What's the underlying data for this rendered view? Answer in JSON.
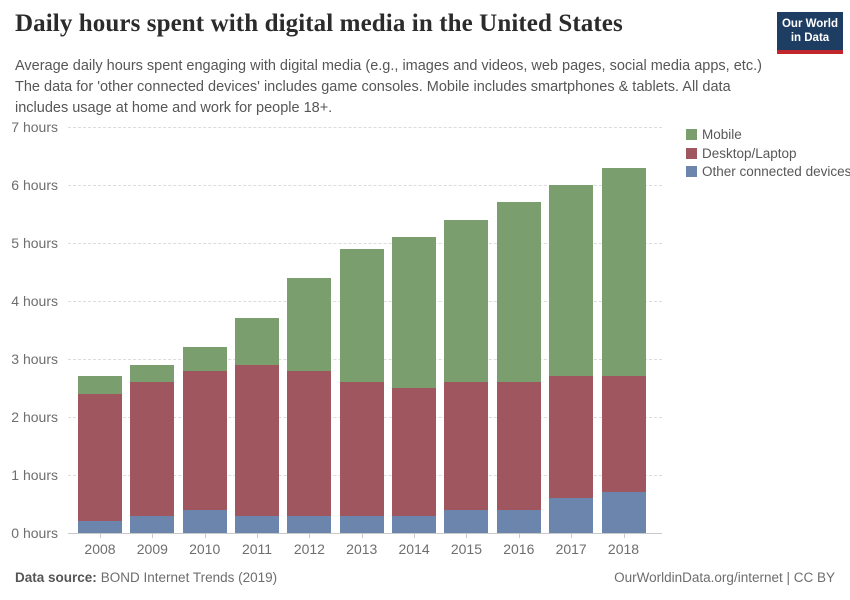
{
  "header": {
    "title": "Daily hours spent with digital media in the United States",
    "subtitle": "Average daily hours spent engaging with digital media (e.g., images and videos, web pages, social media apps, etc.) The data for 'other connected devices' includes game consoles. Mobile includes smartphones & tablets. All data includes usage at home and work for people 18+.",
    "logo": {
      "line1": "Our World",
      "line2": "in Data",
      "bg_color": "#1d3d63",
      "accent_color": "#c0272d"
    }
  },
  "chart_data": {
    "type": "bar",
    "stacked": true,
    "title": "Daily hours spent with digital media in the United States",
    "categories": [
      "2008",
      "2009",
      "2010",
      "2011",
      "2012",
      "2013",
      "2014",
      "2015",
      "2016",
      "2017",
      "2018"
    ],
    "series": [
      {
        "name": "Mobile",
        "color": "#7a9e6e",
        "values": [
          0.3,
          0.3,
          0.4,
          0.8,
          1.6,
          2.3,
          2.6,
          2.8,
          3.1,
          3.3,
          3.6
        ]
      },
      {
        "name": "Desktop/Laptop",
        "color": "#a0565f",
        "values": [
          2.2,
          2.3,
          2.4,
          2.6,
          2.5,
          2.3,
          2.2,
          2.2,
          2.2,
          2.1,
          2.0
        ]
      },
      {
        "name": "Other connected devices",
        "color": "#6b85ac",
        "values": [
          0.2,
          0.3,
          0.4,
          0.3,
          0.3,
          0.3,
          0.3,
          0.4,
          0.4,
          0.6,
          0.7
        ]
      }
    ],
    "stack_order_bottom_to_top": [
      "Other connected devices",
      "Desktop/Laptop",
      "Mobile"
    ],
    "totals": [
      2.7,
      2.9,
      3.2,
      3.7,
      4.4,
      4.9,
      5.1,
      5.4,
      5.7,
      6.0,
      6.3
    ],
    "yticks": [
      0,
      1,
      2,
      3,
      4,
      5,
      6,
      7
    ],
    "ytick_format": "{n} hours",
    "ylim": [
      0,
      7
    ],
    "xlabel": "",
    "ylabel": "",
    "grid": "horizontal-dashed",
    "legend_position": "top-right",
    "grid_color": "#dcdcdc",
    "axis_color": "#c8c8c8"
  },
  "footer": {
    "source_label": "Data source:",
    "source_text": "BOND Internet Trends (2019)",
    "link_text": "OurWorldinData.org/internet | CC BY"
  }
}
